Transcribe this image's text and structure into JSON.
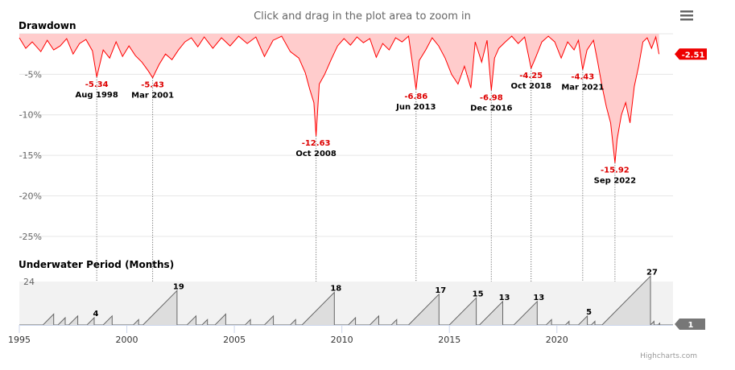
{
  "header": {
    "zoom_hint": "Click and drag in the plot area to zoom in",
    "menu_icon": "hamburger-menu-icon"
  },
  "credit": "Highcharts.com",
  "colors": {
    "drawdown_line": "#ff0000",
    "drawdown_fill": "#ffcccc",
    "underwater_line": "#666666",
    "underwater_fill": "#dddddd",
    "current_flag_drawdown": "#ee0000",
    "current_flag_underwater": "#777777"
  },
  "chart_data": [
    {
      "type": "area",
      "title": "Drawdown",
      "ylim": [
        -27,
        0
      ],
      "yticks": [
        {
          "value": -5,
          "label": "-5%"
        },
        {
          "value": -10,
          "label": "-10%"
        },
        {
          "value": -15,
          "label": "-15%"
        },
        {
          "value": -20,
          "label": "-20%"
        },
        {
          "value": -25,
          "label": "-25%"
        }
      ],
      "grid": true,
      "current_value": -2.51,
      "current_label": "-2.51",
      "annotations": [
        {
          "date": 1998.6,
          "value": -5.34,
          "value_label": "-5.34",
          "date_label": "Aug 1998"
        },
        {
          "date": 2001.2,
          "value": -5.43,
          "value_label": "-5.43",
          "date_label": "Mar 2001"
        },
        {
          "date": 2008.8,
          "value": -12.63,
          "value_label": "-12.63",
          "date_label": "Oct 2008"
        },
        {
          "date": 2013.45,
          "value": -6.86,
          "value_label": "-6.86",
          "date_label": "Jun 2013"
        },
        {
          "date": 2016.95,
          "value": -6.98,
          "value_label": "-6.98",
          "date_label": "Dec 2016"
        },
        {
          "date": 2018.8,
          "value": -4.25,
          "value_label": "-4.25",
          "date_label": "Oct 2018"
        },
        {
          "date": 2021.2,
          "value": -4.43,
          "value_label": "-4.43",
          "date_label": "Mar 2021"
        },
        {
          "date": 2022.7,
          "value": -15.92,
          "value_label": "-15.92",
          "date_label": "Sep 2022"
        }
      ],
      "series": [
        {
          "x": [
            1995.0,
            1995.3,
            1995.6,
            1996.0,
            1996.3,
            1996.6,
            1996.9,
            1997.2,
            1997.5,
            1997.8,
            1998.1,
            1998.4,
            1998.6,
            1998.9,
            1999.2,
            1999.5,
            1999.8,
            2000.1,
            2000.4,
            2000.7,
            2001.0,
            2001.2,
            2001.5,
            2001.8,
            2002.1,
            2002.4,
            2002.7,
            2003.0,
            2003.3,
            2003.6,
            2004.0,
            2004.4,
            2004.8,
            2005.2,
            2005.6,
            2006.0,
            2006.4,
            2006.8,
            2007.2,
            2007.6,
            2008.0,
            2008.3,
            2008.5,
            2008.7,
            2008.8,
            2008.95,
            2009.2,
            2009.5,
            2009.8,
            2010.1,
            2010.4,
            2010.7,
            2011.0,
            2011.3,
            2011.6,
            2011.9,
            2012.2,
            2012.5,
            2012.8,
            2013.1,
            2013.3,
            2013.45,
            2013.6,
            2013.9,
            2014.2,
            2014.5,
            2014.8,
            2015.1,
            2015.4,
            2015.7,
            2016.0,
            2016.2,
            2016.5,
            2016.75,
            2016.95,
            2017.1,
            2017.3,
            2017.6,
            2017.9,
            2018.2,
            2018.5,
            2018.8,
            2019.0,
            2019.3,
            2019.6,
            2019.9,
            2020.2,
            2020.5,
            2020.8,
            2021.0,
            2021.2,
            2021.4,
            2021.7,
            2021.9,
            2022.1,
            2022.3,
            2022.5,
            2022.7,
            2022.8,
            2023.0,
            2023.2,
            2023.4,
            2023.6,
            2023.8,
            2024.0,
            2024.2,
            2024.4,
            2024.6,
            2024.75
          ],
          "values": [
            -0.5,
            -1.8,
            -1.0,
            -2.2,
            -0.8,
            -2.0,
            -1.5,
            -0.6,
            -2.5,
            -1.2,
            -0.7,
            -2.1,
            -5.34,
            -2.0,
            -3.0,
            -1.0,
            -2.8,
            -1.5,
            -2.7,
            -3.5,
            -4.6,
            -5.43,
            -3.8,
            -2.5,
            -3.2,
            -2.0,
            -1.0,
            -0.5,
            -1.6,
            -0.4,
            -1.8,
            -0.5,
            -1.5,
            -0.3,
            -1.2,
            -0.4,
            -2.8,
            -0.8,
            -0.3,
            -2.2,
            -3.0,
            -4.8,
            -6.8,
            -8.5,
            -12.63,
            -6.2,
            -5.0,
            -3.2,
            -1.5,
            -0.6,
            -1.4,
            -0.4,
            -1.1,
            -0.6,
            -2.9,
            -1.2,
            -2.0,
            -0.5,
            -1.0,
            -0.3,
            -4.0,
            -6.86,
            -3.3,
            -2.0,
            -0.5,
            -1.5,
            -3.0,
            -5.0,
            -6.2,
            -4.0,
            -6.7,
            -1.0,
            -3.5,
            -0.8,
            -6.98,
            -3.0,
            -1.8,
            -1.0,
            -0.3,
            -1.2,
            -0.4,
            -4.25,
            -3.0,
            -1.0,
            -0.3,
            -1.0,
            -3.0,
            -1.0,
            -2.0,
            -0.8,
            -4.43,
            -2.0,
            -0.8,
            -3.5,
            -6.5,
            -9.0,
            -11.0,
            -15.92,
            -13.0,
            -10.0,
            -8.5,
            -11.0,
            -6.5,
            -4.0,
            -1.0,
            -0.5,
            -1.8,
            -0.4,
            -2.51
          ]
        }
      ]
    },
    {
      "type": "area",
      "title": "Underwater Period (Months)",
      "ylim": [
        0,
        24
      ],
      "yticks": [
        {
          "value": 24,
          "label": "24"
        }
      ],
      "xlim": [
        1995.0,
        2025.4
      ],
      "xticks": [
        {
          "value": 1995,
          "label": "1995"
        },
        {
          "value": 2000,
          "label": "2000"
        },
        {
          "value": 2005,
          "label": "2005"
        },
        {
          "value": 2010,
          "label": "2010"
        },
        {
          "value": 2015,
          "label": "2015"
        },
        {
          "value": 2020,
          "label": "2020"
        }
      ],
      "current_value": 1,
      "current_label": "1",
      "periods": [
        {
          "start": 1996.1,
          "length": 6
        },
        {
          "start": 1996.8,
          "length": 4
        },
        {
          "start": 1997.3,
          "length": 5
        },
        {
          "start": 1998.15,
          "length": 4,
          "label": "4"
        },
        {
          "start": 1998.9,
          "length": 5
        },
        {
          "start": 2000.3,
          "length": 3
        },
        {
          "start": 2000.75,
          "length": 19,
          "label": "19"
        },
        {
          "start": 2002.8,
          "length": 5
        },
        {
          "start": 2003.5,
          "length": 3
        },
        {
          "start": 2004.1,
          "length": 6
        },
        {
          "start": 2005.5,
          "length": 3
        },
        {
          "start": 2006.4,
          "length": 5
        },
        {
          "start": 2007.6,
          "length": 3
        },
        {
          "start": 2008.15,
          "length": 18,
          "label": "18"
        },
        {
          "start": 2010.3,
          "length": 4
        },
        {
          "start": 2011.3,
          "length": 5
        },
        {
          "start": 2012.3,
          "length": 3
        },
        {
          "start": 2013.1,
          "length": 17,
          "label": "17"
        },
        {
          "start": 2015.0,
          "length": 15,
          "label": "15"
        },
        {
          "start": 2016.4,
          "length": 13,
          "label": "13"
        },
        {
          "start": 2018.0,
          "length": 13,
          "label": "13"
        },
        {
          "start": 2019.5,
          "length": 3
        },
        {
          "start": 2020.4,
          "length": 2
        },
        {
          "start": 2021.0,
          "length": 5,
          "label": "5"
        },
        {
          "start": 2021.6,
          "length": 2
        },
        {
          "start": 2022.1,
          "length": 27,
          "label": "27"
        },
        {
          "start": 2024.35,
          "length": 2
        },
        {
          "start": 2024.7,
          "length": 1
        }
      ]
    }
  ]
}
